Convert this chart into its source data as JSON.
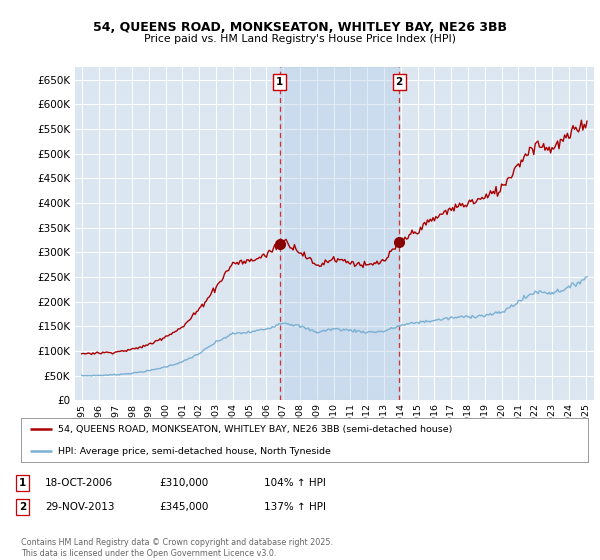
{
  "title": "54, QUEENS ROAD, MONKSEATON, WHITLEY BAY, NE26 3BB",
  "subtitle": "Price paid vs. HM Land Registry's House Price Index (HPI)",
  "background_color": "#ffffff",
  "plot_bg_color": "#dce6f1",
  "shade_color": "#cfe0f0",
  "grid_color": "#ffffff",
  "ylim": [
    0,
    675000
  ],
  "yticks": [
    0,
    50000,
    100000,
    150000,
    200000,
    250000,
    300000,
    350000,
    400000,
    450000,
    500000,
    550000,
    600000,
    650000
  ],
  "ytick_labels": [
    "£0",
    "£50K",
    "£100K",
    "£150K",
    "£200K",
    "£250K",
    "£300K",
    "£350K",
    "£400K",
    "£450K",
    "£500K",
    "£550K",
    "£600K",
    "£650K"
  ],
  "marker1_date": 2006.8,
  "marker1_price": 310000,
  "marker1_label": "1",
  "marker2_date": 2013.9,
  "marker2_price": 345000,
  "marker2_label": "2",
  "line1_color": "#aa0000",
  "line2_color": "#7ab0d4",
  "vline_color": "#cc3333",
  "marker_dot_color": "#880000",
  "legend1_label": "54, QUEENS ROAD, MONKSEATON, WHITLEY BAY, NE26 3BB (semi-detached house)",
  "legend2_label": "HPI: Average price, semi-detached house, North Tyneside",
  "ann1_date": "18-OCT-2006",
  "ann1_price": "£310,000",
  "ann1_hpi": "104% ↑ HPI",
  "ann2_date": "29-NOV-2013",
  "ann2_price": "£345,000",
  "ann2_hpi": "137% ↑ HPI",
  "footer": "Contains HM Land Registry data © Crown copyright and database right 2025.\nThis data is licensed under the Open Government Licence v3.0."
}
